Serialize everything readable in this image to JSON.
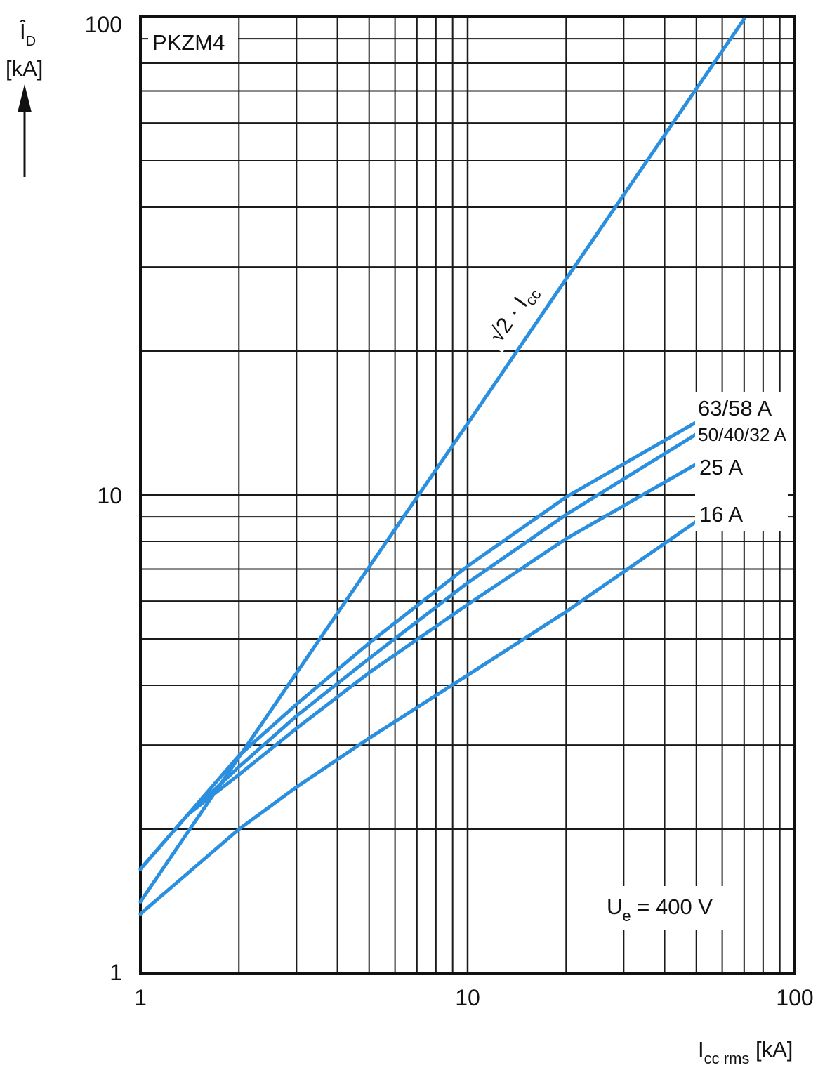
{
  "chart_data": {
    "type": "line",
    "title": "PKZM4",
    "xlabel": {
      "main": "I",
      "sub": "cc rms",
      "unit": " [kA]"
    },
    "ylabel": {
      "main": "Î",
      "sub": "D",
      "unit": "[kA]"
    },
    "x_scale": "log",
    "y_scale": "log",
    "xlim": [
      1,
      100
    ],
    "ylim": [
      1,
      100
    ],
    "x_ticks": [
      "1",
      "10",
      "100"
    ],
    "y_ticks": [
      "1",
      "10",
      "100"
    ],
    "grid": true,
    "annotation": {
      "main": "U",
      "sub": "e",
      "rest": " = 400 V"
    },
    "series_color": "#2b8fe0",
    "series": [
      {
        "name": "√2 · Icc",
        "label_parts": {
          "root": "√2",
          "dot": " · I",
          "sub": "cc"
        },
        "x": [
          1,
          2,
          5,
          10,
          20,
          50,
          70
        ],
        "y": [
          1.41,
          2.83,
          7.07,
          14.1,
          28.3,
          70.7,
          99
        ]
      },
      {
        "name": "63/58 A",
        "x": [
          1,
          1.4,
          2,
          3,
          5,
          10,
          20,
          50
        ],
        "y": [
          1.65,
          2.15,
          2.85,
          3.65,
          4.9,
          7.1,
          9.9,
          14.2
        ]
      },
      {
        "name": "50/40/32 A",
        "x": [
          1,
          1.4,
          2,
          3,
          5,
          10,
          20,
          50
        ],
        "y": [
          1.65,
          2.15,
          2.7,
          3.45,
          4.55,
          6.55,
          9.1,
          13.4
        ]
      },
      {
        "name": "25 A",
        "x": [
          1,
          1.4,
          2,
          3,
          5,
          10,
          20,
          50
        ],
        "y": [
          1.65,
          2.15,
          2.6,
          3.25,
          4.25,
          5.9,
          8.1,
          11.6
        ]
      },
      {
        "name": "16 A",
        "x": [
          1,
          2,
          3,
          5,
          10,
          20,
          50
        ],
        "y": [
          1.33,
          2.0,
          2.45,
          3.1,
          4.2,
          5.7,
          8.8
        ]
      }
    ]
  }
}
